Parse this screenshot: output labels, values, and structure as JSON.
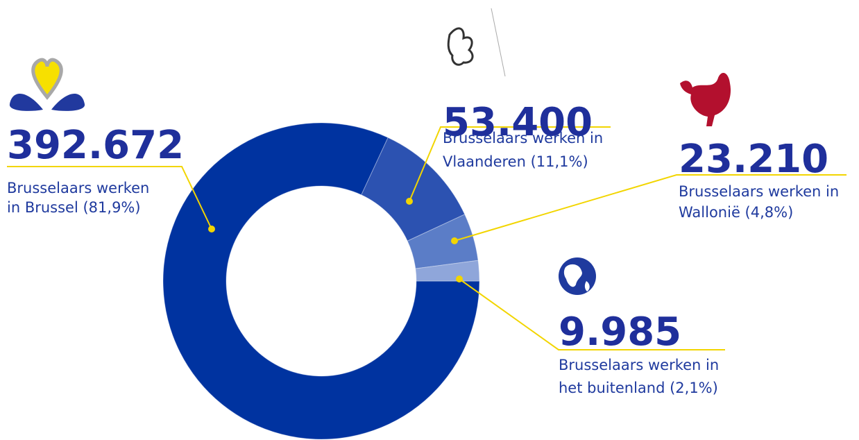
{
  "chart_data": {
    "type": "pie",
    "categories": [
      "Brussel",
      "Vlaanderen",
      "Wallonië",
      "buitenland"
    ],
    "values": [
      392672,
      53400,
      23210,
      9985
    ],
    "value_labels": [
      "392.672",
      "53.400",
      "23.210",
      "9.985"
    ],
    "descriptions": [
      [
        "Brusselaars werken",
        "in Brussel (81,9%)"
      ],
      [
        "Brusselaars werken in",
        "Vlaanderen (11,1%)"
      ],
      [
        "Brusselaars werken in",
        "Wallonië (4,8%)"
      ],
      [
        "Brusselaars werken in",
        "het buitenland (2,1%)"
      ]
    ],
    "colors": [
      "#0033a0",
      "#2c52b1",
      "#5b7dc7",
      "#8fa6da"
    ],
    "donut": true
  }
}
